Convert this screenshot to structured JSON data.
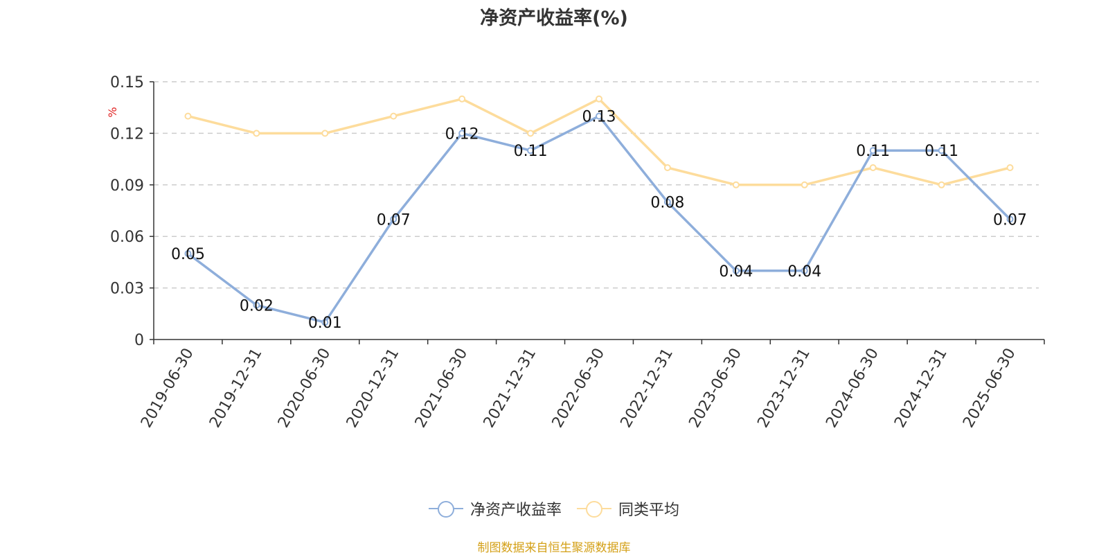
{
  "chart_data": {
    "type": "line",
    "title": "净资产收益率(%)",
    "ylabel": "%",
    "xlabel": "",
    "categories": [
      "2019-06-30",
      "2019-12-31",
      "2020-06-30",
      "2020-12-31",
      "2021-06-30",
      "2021-12-31",
      "2022-06-30",
      "2022-12-31",
      "2023-06-30",
      "2023-12-31",
      "2024-06-30",
      "2024-12-31",
      "2025-06-30"
    ],
    "ylim": [
      0,
      0.15
    ],
    "yticks": [
      "0",
      "0.03",
      "0.06",
      "0.09",
      "0.12",
      "0.15"
    ],
    "ytick_values": [
      0,
      0.03,
      0.06,
      0.09,
      0.12,
      0.15
    ],
    "grid": true,
    "legend_position": "bottom",
    "series": [
      {
        "name": "净资产收益率",
        "color": "#8eaedb",
        "values": [
          0.05,
          0.02,
          0.01,
          0.07,
          0.12,
          0.11,
          0.13,
          0.08,
          0.04,
          0.04,
          0.11,
          0.11,
          0.07
        ],
        "data_labels": [
          "0.05",
          "0.02",
          "0.01",
          "0.07",
          "0.12",
          "0.11",
          "0.13",
          "0.08",
          "0.04",
          "0.04",
          "0.11",
          "0.11",
          "0.07"
        ]
      },
      {
        "name": "同类平均",
        "color": "#fddc9c",
        "values": [
          0.13,
          0.12,
          0.12,
          0.13,
          0.14,
          0.12,
          0.14,
          0.1,
          0.09,
          0.09,
          0.1,
          0.09,
          0.1
        ]
      }
    ],
    "ylabel_color": "#e02020"
  },
  "footer": {
    "source": "制图数据来自恒生聚源数据库"
  }
}
